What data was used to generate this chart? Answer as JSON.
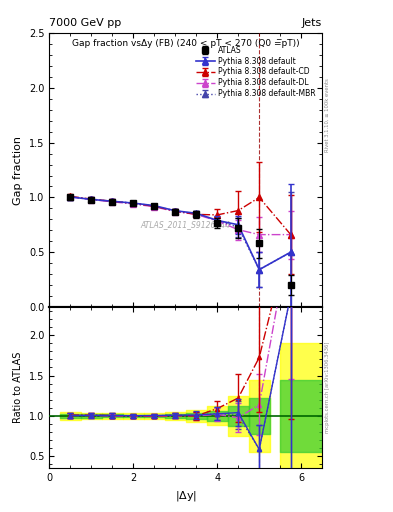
{
  "title_top": "7000 GeV pp",
  "title_right": "Jets",
  "plot_title": "Gap fraction vsΔy (FB) (240 < pT < 270 (Q0 =̅pT))",
  "watermark": "ATLAS_2011_S9126244",
  "xlabel": "|$\\Delta$y|",
  "ylabel_main": "Gap fraction",
  "ylabel_ratio": "Ratio to ATLAS",
  "right_label_main": "Rivet 3.1.10, ≥ 100k events",
  "right_label_ratio": "mcplots.cern.ch [arXiv:1306.3436]",
  "atlas_x": [
    0.5,
    1.0,
    1.5,
    2.0,
    2.5,
    3.0,
    3.5,
    4.0,
    4.5,
    5.0,
    5.75
  ],
  "atlas_y": [
    1.0,
    0.975,
    0.96,
    0.945,
    0.92,
    0.87,
    0.845,
    0.77,
    0.72,
    0.58,
    0.2
  ],
  "atlas_yerr": [
    0.025,
    0.02,
    0.018,
    0.016,
    0.016,
    0.02,
    0.03,
    0.045,
    0.09,
    0.13,
    0.09
  ],
  "py_default_x": [
    0.5,
    1.0,
    1.5,
    2.0,
    2.5,
    3.0,
    3.5,
    4.0,
    4.5,
    5.0,
    5.75
  ],
  "py_default_y": [
    1.005,
    0.982,
    0.965,
    0.948,
    0.925,
    0.878,
    0.855,
    0.79,
    0.75,
    0.34,
    0.5
  ],
  "py_default_yerr": [
    0.02,
    0.018,
    0.016,
    0.014,
    0.015,
    0.018,
    0.025,
    0.04,
    0.08,
    0.16,
    0.62
  ],
  "py_cd_x": [
    0.5,
    1.0,
    1.5,
    2.0,
    2.5,
    3.0,
    3.5,
    4.0,
    4.5,
    5.0,
    5.75
  ],
  "py_cd_y": [
    1.01,
    0.985,
    0.965,
    0.945,
    0.92,
    0.875,
    0.845,
    0.84,
    0.88,
    1.0,
    0.66
  ],
  "py_cd_yerr": [
    0.02,
    0.018,
    0.016,
    0.014,
    0.015,
    0.018,
    0.025,
    0.055,
    0.18,
    0.32,
    0.36
  ],
  "py_dl_x": [
    0.5,
    1.0,
    1.5,
    2.0,
    2.5,
    3.0,
    3.5,
    4.0,
    4.5,
    5.0,
    5.75
  ],
  "py_dl_y": [
    1.005,
    0.98,
    0.96,
    0.94,
    0.915,
    0.87,
    0.845,
    0.785,
    0.705,
    0.66,
    0.66
  ],
  "py_dl_yerr": [
    0.02,
    0.018,
    0.016,
    0.014,
    0.015,
    0.018,
    0.025,
    0.04,
    0.09,
    0.16,
    0.22
  ],
  "py_mbr_x": [
    0.5,
    1.0,
    1.5,
    2.0,
    2.5,
    3.0,
    3.5,
    4.0,
    4.5,
    5.0,
    5.75
  ],
  "py_mbr_y": [
    1.005,
    0.982,
    0.965,
    0.948,
    0.922,
    0.878,
    0.848,
    0.793,
    0.725,
    0.34,
    0.5
  ],
  "py_mbr_yerr": [
    0.02,
    0.018,
    0.016,
    0.014,
    0.015,
    0.018,
    0.025,
    0.04,
    0.085,
    0.16,
    0.55
  ],
  "xlim": [
    0,
    6.5
  ],
  "ylim_main": [
    0.0,
    2.5
  ],
  "ylim_ratio": [
    0.35,
    2.35
  ],
  "color_atlas": "#000000",
  "color_default": "#3333cc",
  "color_cd": "#cc0000",
  "color_dl": "#cc44cc",
  "color_mbr": "#4444aa",
  "vline_x": 5.0,
  "vline2_x": 5.5
}
